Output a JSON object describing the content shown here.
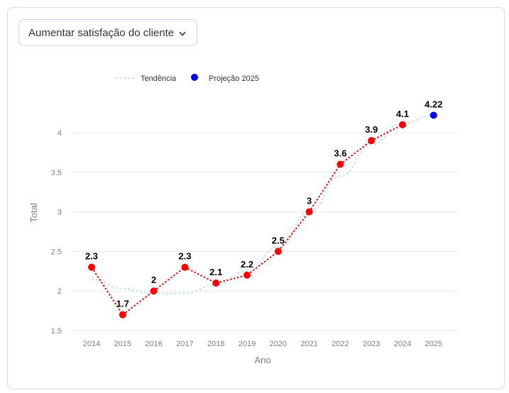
{
  "dropdown": {
    "selected": "Aumentar satisfação do cliente"
  },
  "chart_data": {
    "type": "line",
    "xlabel": "Ano",
    "ylabel": "Total",
    "ylim": [
      1.5,
      4.2
    ],
    "yticks": [
      1.5,
      2,
      2.5,
      3,
      3.5,
      4
    ],
    "ytick_labels": [
      "1.5",
      "2",
      "2.5",
      "3",
      "3.5",
      "4"
    ],
    "x": [
      2014,
      2015,
      2016,
      2017,
      2018,
      2019,
      2020,
      2021,
      2022,
      2023,
      2024,
      2025
    ],
    "xtick_labels": [
      "2014",
      "2015",
      "2016",
      "2017",
      "2018",
      "2019",
      "2020",
      "2021",
      "2022",
      "2023",
      "2024",
      "2025"
    ],
    "grid": true,
    "legend": {
      "position": "top",
      "entries": [
        "Tendência",
        "Projeção 2025"
      ]
    },
    "series": [
      {
        "name": "Total",
        "color": "#ff0000",
        "x": [
          2014,
          2015,
          2016,
          2017,
          2018,
          2019,
          2020,
          2021,
          2022,
          2023,
          2024
        ],
        "values": [
          2.3,
          1.7,
          2,
          2.3,
          2.1,
          2.2,
          2.5,
          3,
          3.6,
          3.9,
          4.1
        ],
        "labels": [
          "2.3",
          "1.7",
          "2",
          "2.3",
          "2.1",
          "2.2",
          "2.5",
          "3",
          "3.6",
          "3.9",
          "4.1"
        ]
      },
      {
        "name": "Tendência",
        "color": "#cde6ee",
        "x": [
          2014,
          2015,
          2016,
          2017,
          2018,
          2019,
          2020,
          2021,
          2022,
          2023,
          2024,
          2025
        ],
        "values": [
          2.15,
          2.03,
          1.97,
          1.97,
          2.08,
          2.25,
          2.55,
          3.0,
          3.45,
          3.85,
          4.12,
          4.22
        ]
      },
      {
        "name": "Projeção 2025",
        "color": "#0000ff",
        "x": [
          2025
        ],
        "values": [
          4.22
        ],
        "labels": [
          "4.22"
        ]
      }
    ]
  }
}
